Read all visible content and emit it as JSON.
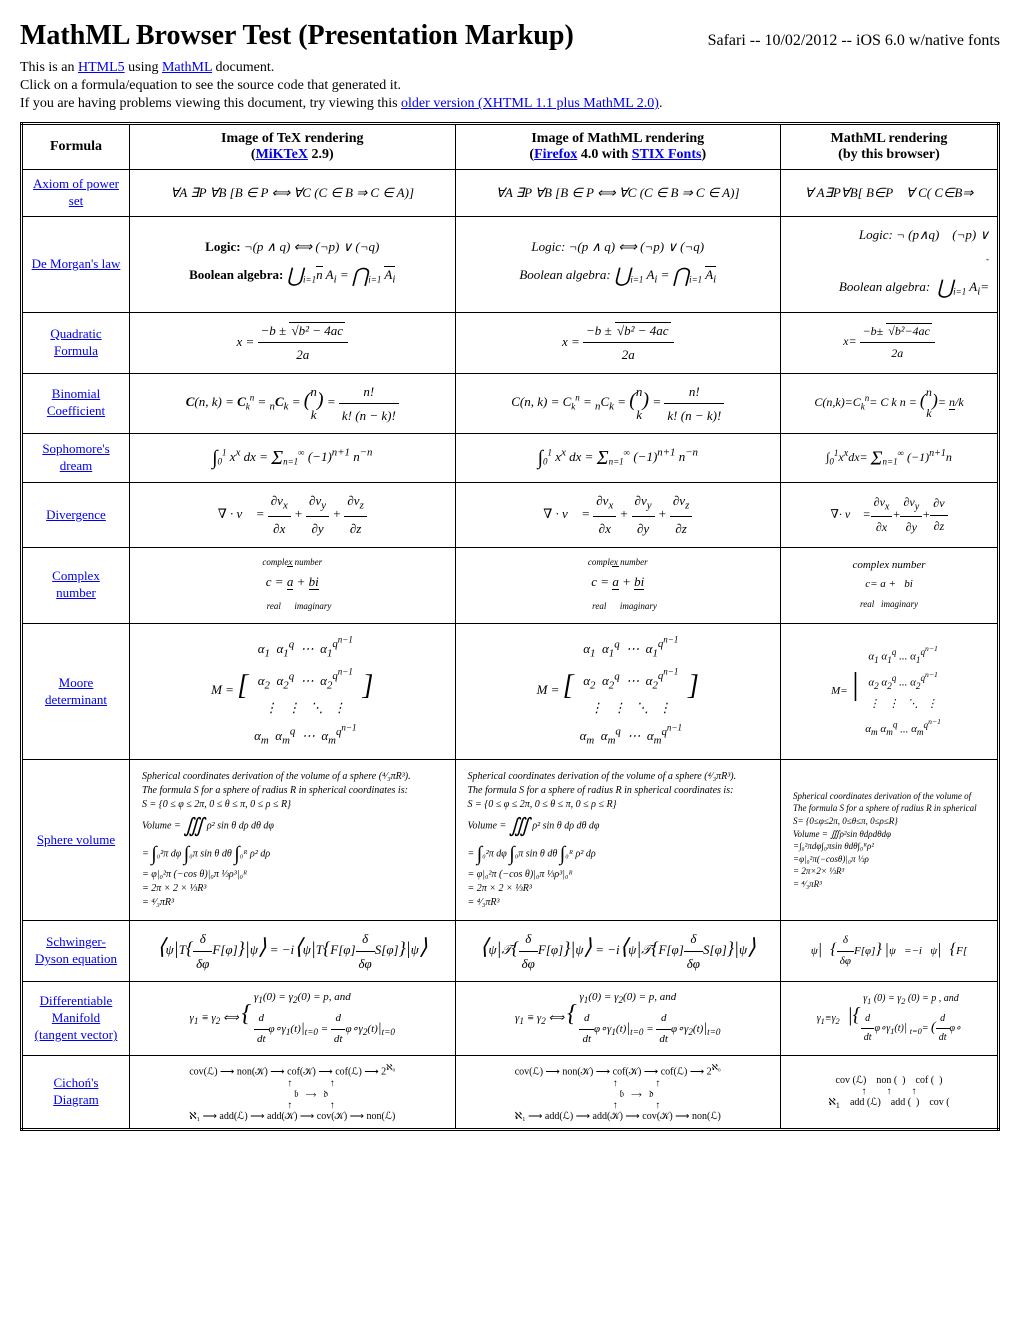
{
  "page": {
    "title": "MathML Browser Test (Presentation Markup)",
    "subtitle": "Safari -- 10/02/2012 -- iOS 6.0 w/native fonts",
    "intro1_a": "This is an ",
    "intro1_link1": "HTML5",
    "intro1_b": " using ",
    "intro1_link2": "MathML",
    "intro1_c": " document.",
    "intro2": "Click on a formula/equation to see the source code that generated it.",
    "intro3_a": "If you are having problems viewing this document, try viewing this ",
    "intro3_link": "older version (XHTML 1.1 plus MathML 2.0)",
    "intro3_b": "."
  },
  "headers": {
    "col1": "Formula",
    "col2_a": "Image of TeX rendering",
    "col2_b": "(",
    "col2_link": "MiKTeX",
    "col2_c": " 2.9)",
    "col3_a": "Image of MathML rendering",
    "col3_b": "(",
    "col3_link1": "Firefox",
    "col3_c": " 4.0 with ",
    "col3_link2": "STIX Fonts",
    "col3_d": ")",
    "col4_a": "MathML rendering",
    "col4_b": "(by this browser)"
  },
  "rows": [
    {
      "name": "Axiom of power set",
      "tex": "∀A ∃P ∀B [B ∈ P ⟺ ∀C (C ∈ B ⇒ C ∈ A)]",
      "mathml": "∀A ∃P ∀B [B ∈ P ⟺ ∀C (C ∈ B ⇒ C ∈ A)]",
      "browser": "∀ A∃P∀B[ B∈P    ∀ C( C∈B⇒"
    },
    {
      "name": "De Morgan's law",
      "logic_label": "Logic:",
      "logic_tex": "¬(p ∧ q) ⟺ (¬p) ∨ (¬q)",
      "bool_label": "Boolean algebra:",
      "bool_tex": "⋃ Aᵢ = ⋂ A̅ᵢ",
      "browser_logic": "Logic: ¬ (p∧q)    (¬p) ∨",
      "browser_bool": "Boolean algebra:  ⋃ Aᵢ="
    },
    {
      "name": "Quadratic Formula",
      "formula_var": "x =",
      "num": "−b ± √(b² − 4ac)",
      "den": "2a",
      "browser": "x= (−b± √(b²−4ac)) / 2a"
    },
    {
      "name": "Binomial Coefficient",
      "tex": "C(n, k) = Cₖⁿ = ₙCₖ = (n k) = n! / (k!(n−k)!)",
      "browser": "C(n,k)=Cₖⁿ= C k n = (n k)= n!/k"
    },
    {
      "name": "Sophomore's dream",
      "tex": "∫₀¹ xˣ dx = Σ (−1)ⁿ⁺¹ n⁻ⁿ",
      "browser": "∫₀¹xˣdx= Σ (−1)ⁿ⁺¹n"
    },
    {
      "name": "Divergence",
      "tex": "∇ · v⃗ = ∂vₓ/∂x + ∂vᵧ/∂y + ∂v_z/∂z",
      "browser": "∇· v⃗ = ∂vₓ/∂x + ∂vᵧ/∂y + ∂v/∂z"
    },
    {
      "name": "Complex number",
      "tex": "c = a (real) + bi (imaginary)  [complex number]",
      "browser": "complex number\nc= a + bi\nreal imaginary"
    },
    {
      "name": "Moore determinant",
      "tex": "M = [α₁ α₁ᵍ ... α₁^(qⁿ⁻¹); α₂ α₂ᵍ ... ; ⋮ ; αₘ αₘᵍ ... αₘ^(qⁿ⁻¹)]",
      "browser": "M= |α₁ α₁ᵍ ... α₁^q; α₂ α₂ᵍ...; ⋮ ⋱; αₘ αₘᵍ...|"
    },
    {
      "name": "Sphere volume",
      "tex": "Spherical coordinates derivation of the volume of a sphere (⁴⁄₃πR³).\nThe formula S for a sphere of radius R in spherical coordinates is:\nS = {0 ≤ φ ≤ 2π, 0 ≤ θ ≤ π, 0 ≤ ρ ≤ R}\nVolume = ∭ ρ² sin θ dρ dθ dφ\n= ∫₀²π dφ ∫₀π sin θ dθ ∫₀ᴿ ρ² dρ\n= φ|₀²π (−cos θ)|₀π ⅓ρ³|₀ᴿ\n= 2π × 2 × ⅓R³\n= ⁴⁄₃πR³",
      "browser": "Spherical coordinates derivation of the volume of\nThe formula S for a sphere of radius R in spherical\nS= {0≤φ≤2π, 0≤θ≤π, 0≤ρ≤R}\nVolume = ∭ρ²sin θdρdθdφ\n=∫₀²πdφ∫₀πsin θdθ∫₀ᴿρ²\n=φ|₀²π(−cosθ)|₀π ⅓ρ\n= 2π×2× ⅓R³\n= ⁴⁄₃πR³"
    },
    {
      "name": "Schwinger-Dyson equation",
      "tex": "⟨ψ|T{δ/δφ F[φ]}|ψ⟩ = −i⟨ψ|T{F[φ] δ/δφ S[φ]}|ψ⟩",
      "browser": "ψ|   {δ/δφ F[φ]} |ψ  =−i   ψ|   {F["
    },
    {
      "name": "Differentiable Manifold (tangent vector)",
      "tex": "γ₁ ≡ γ₂ ⟺ { γ₁(0) = γ₂(0) = p, and  d/dt φ∘γ₁(t)|ₜ₌₀ = d/dt φ∘γ₂(t)|ₜ₌₀",
      "browser": "γ₁≡γ₂    |{γ₁(0)=γ₂(0)=p, and  d/dt φ∘γ₁(t)|ₜ₌₀=(d/dt φ∘"
    },
    {
      "name": "Cichoń's Diagram",
      "tex": "cov(L) → non(K) → cof(K) → cof(L) → 2ℵ₀\n↑        ↑\nb    →    d\n↑        ↑\nℵ₁ → add(L) → add(K) → cov(K) → non(L)",
      "browser": "cov (L)    non ( )    cof ( )\n↑    ↑    ↑\nℵ₁    add (L)    add ( )    cov ("
    }
  ]
}
